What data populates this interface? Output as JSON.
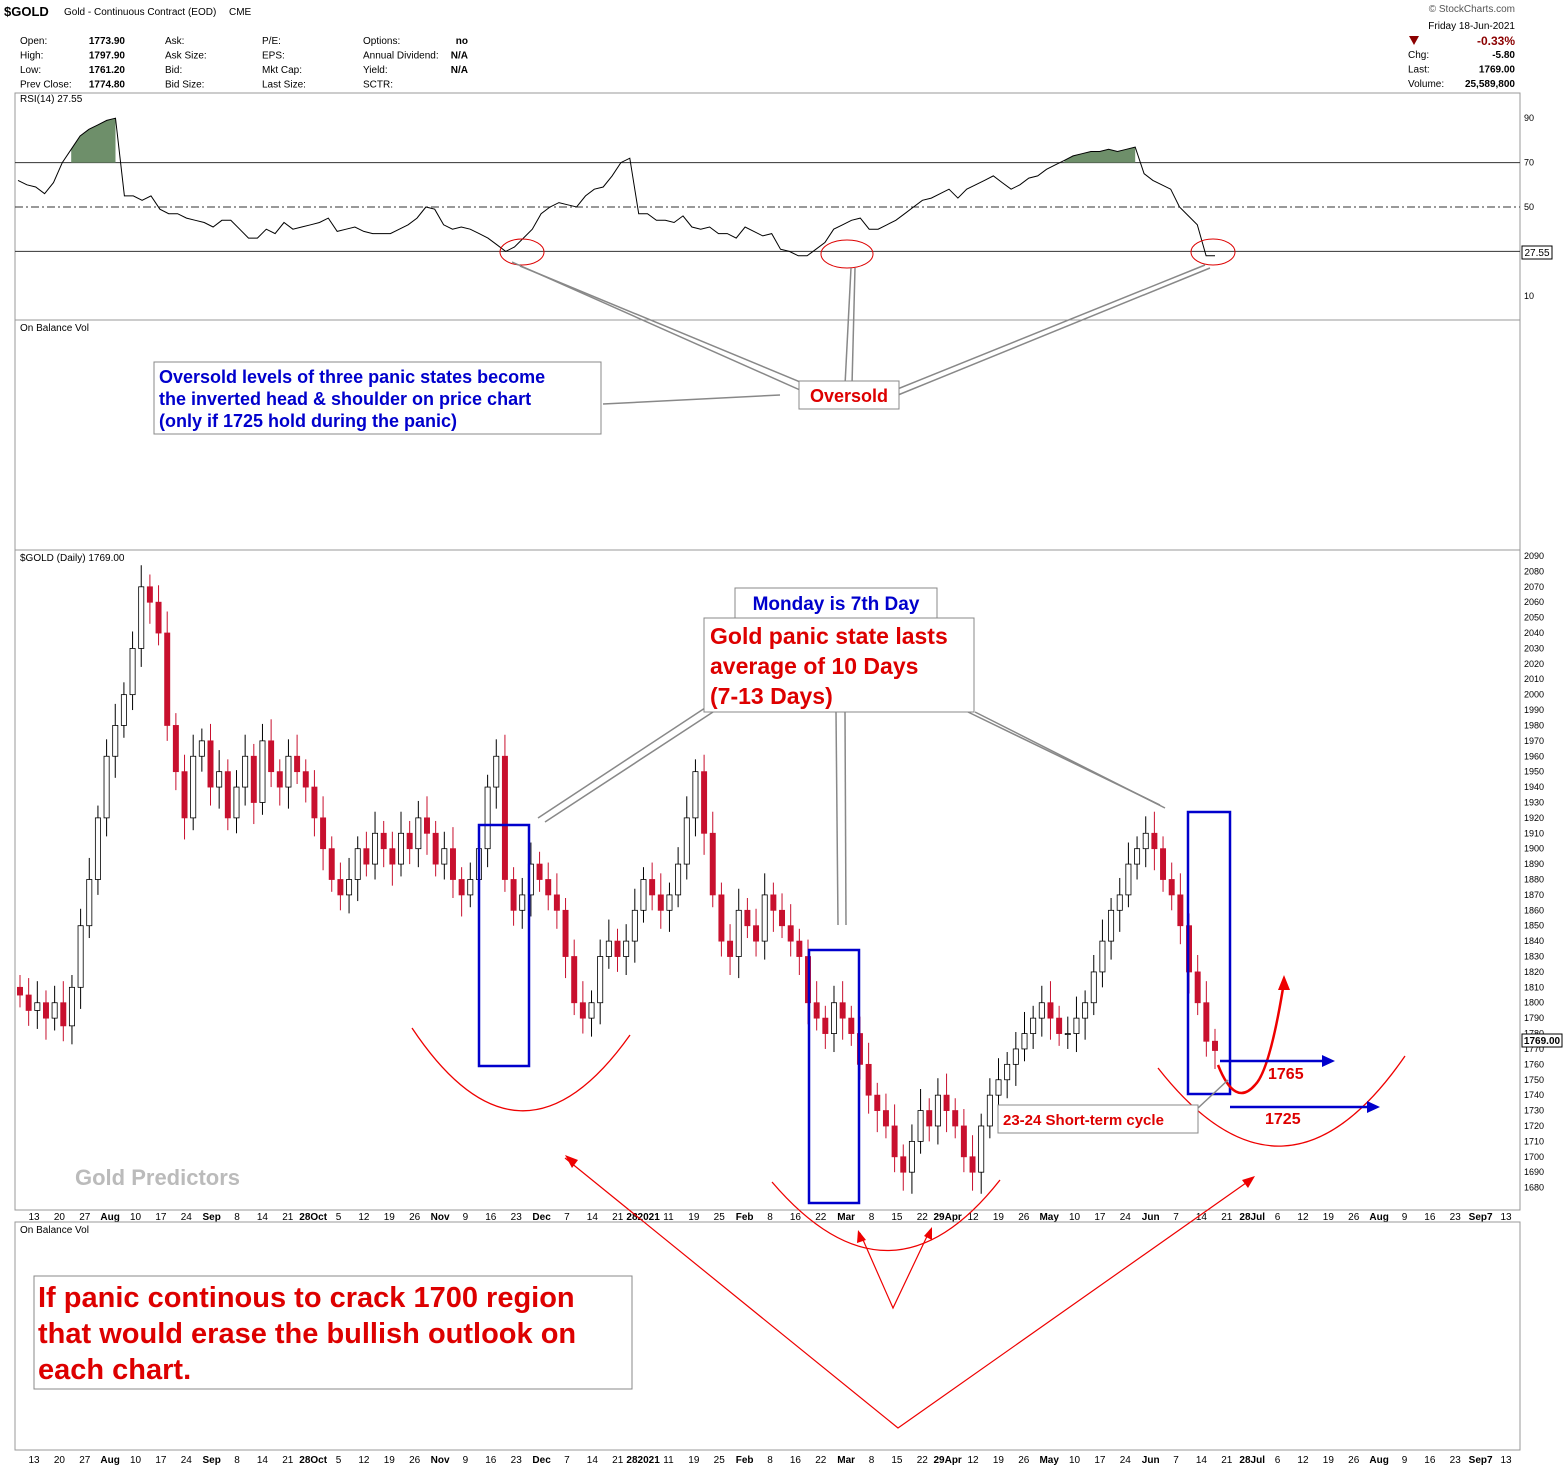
{
  "header": {
    "symbol": "$GOLD",
    "description": "Gold - Continuous Contract (EOD)",
    "exchange": "CME",
    "brand": "© StockCharts.com",
    "date": "Friday 18-Jun-2021",
    "stats": [
      {
        "label": "Open:",
        "value": "1773.90"
      },
      {
        "label": "High:",
        "value": "1797.90"
      },
      {
        "label": "Low:",
        "value": "1761.20"
      },
      {
        "label": "Prev Close:",
        "value": "1774.80"
      }
    ],
    "stats2": [
      {
        "label": "Ask:",
        "value": ""
      },
      {
        "label": "Ask Size:",
        "value": ""
      },
      {
        "label": "Bid:",
        "value": ""
      },
      {
        "label": "Bid Size:",
        "value": ""
      }
    ],
    "stats3": [
      {
        "label": "P/E:",
        "value": ""
      },
      {
        "label": "EPS:",
        "value": ""
      },
      {
        "label": "Mkt Cap:",
        "value": ""
      },
      {
        "label": "Last Size:",
        "value": ""
      }
    ],
    "stats4": [
      {
        "label": "Options:",
        "value": "no"
      },
      {
        "label": "Annual Dividend:",
        "value": "N/A"
      },
      {
        "label": "Yield:",
        "value": "N/A"
      },
      {
        "label": "SCTR:",
        "value": ""
      }
    ],
    "change_pct": "-0.33%",
    "quote": [
      {
        "label": "Chg:",
        "value": "-5.80"
      },
      {
        "label": "Last:",
        "value": "1769.00"
      },
      {
        "label": "Volume:",
        "value": "25,589,800"
      }
    ]
  },
  "chart_data": [
    {
      "type": "line",
      "title": "RSI(14) 27.55",
      "ylim": [
        0,
        100
      ],
      "yticks": [
        90,
        70,
        50,
        30,
        10
      ],
      "reference_lines": [
        70,
        50,
        30
      ],
      "current_label": "27.55",
      "series": [
        {
          "values": [
            62,
            60,
            59,
            56,
            61,
            70,
            76,
            82,
            85,
            87,
            89,
            90,
            55,
            55,
            53,
            55,
            49,
            47,
            47,
            45,
            44,
            43,
            41,
            44,
            44,
            40,
            36,
            36,
            40,
            38,
            43,
            40,
            41,
            42,
            43,
            45,
            39,
            40,
            41,
            39,
            38,
            38,
            38,
            40,
            42,
            45,
            50,
            49,
            42,
            40,
            41,
            40,
            38,
            36,
            33,
            30,
            32,
            36,
            40,
            47,
            50,
            52,
            51,
            50,
            55,
            58,
            59,
            64,
            70,
            72,
            47,
            47,
            44,
            44,
            43,
            46,
            41,
            40,
            41,
            38,
            38,
            36,
            41,
            39,
            37,
            38,
            31,
            30,
            28,
            28,
            31,
            34,
            40,
            42,
            44,
            45,
            40,
            40,
            42,
            44,
            47,
            50,
            53,
            54,
            56,
            58,
            54,
            58,
            60,
            62,
            64,
            61,
            58,
            60,
            63,
            64,
            67,
            69,
            71,
            73,
            74,
            75,
            75,
            76,
            75,
            76,
            77,
            65,
            62,
            60,
            58,
            50,
            46,
            42,
            28,
            28
          ]
        }
      ]
    },
    {
      "type": "text",
      "title": "On Balance Vol"
    },
    {
      "type": "candlestick",
      "title": "$GOLD (Daily) 1769.00",
      "ylim": [
        1670,
        2090
      ],
      "yticks": [
        2090,
        2080,
        2070,
        2060,
        2050,
        2040,
        2030,
        2020,
        2010,
        2000,
        1990,
        1980,
        1970,
        1960,
        1950,
        1940,
        1930,
        1920,
        1910,
        1900,
        1890,
        1880,
        1870,
        1860,
        1850,
        1840,
        1830,
        1820,
        1810,
        1800,
        1790,
        1780,
        1770,
        1760,
        1750,
        1740,
        1730,
        1720,
        1710,
        1700,
        1690,
        1680
      ],
      "last_label": "1769.00",
      "close": [
        1805,
        1795,
        1800,
        1790,
        1800,
        1785,
        1810,
        1850,
        1880,
        1920,
        1960,
        1980,
        2000,
        2030,
        2070,
        2060,
        2040,
        1980,
        1950,
        1920,
        1960,
        1970,
        1940,
        1950,
        1920,
        1940,
        1960,
        1930,
        1970,
        1950,
        1940,
        1960,
        1950,
        1940,
        1920,
        1900,
        1880,
        1870,
        1880,
        1900,
        1890,
        1910,
        1900,
        1890,
        1910,
        1900,
        1920,
        1910,
        1890,
        1900,
        1880,
        1870,
        1880,
        1900,
        1940,
        1960,
        1880,
        1860,
        1870,
        1890,
        1880,
        1870,
        1860,
        1830,
        1800,
        1790,
        1800,
        1830,
        1840,
        1830,
        1840,
        1860,
        1880,
        1870,
        1860,
        1870,
        1890,
        1920,
        1950,
        1910,
        1870,
        1840,
        1830,
        1860,
        1850,
        1840,
        1870,
        1860,
        1850,
        1840,
        1830,
        1800,
        1790,
        1780,
        1800,
        1790,
        1780,
        1760,
        1740,
        1730,
        1720,
        1700,
        1690,
        1710,
        1730,
        1720,
        1740,
        1730,
        1720,
        1700,
        1690,
        1720,
        1740,
        1750,
        1760,
        1770,
        1780,
        1790,
        1800,
        1790,
        1780,
        1780,
        1790,
        1800,
        1820,
        1840,
        1860,
        1870,
        1890,
        1900,
        1910,
        1900,
        1880,
        1870,
        1850,
        1820,
        1800,
        1775,
        1769
      ],
      "annotations": [
        {
          "text": "Monday is 7th Day",
          "color": "#0000cc"
        },
        {
          "text": "Gold panic state lasts average of 10 Days (7-13 Days)",
          "color": "#dd0000"
        },
        {
          "text": "23-24 Short-term cycle",
          "color": "#dd0000"
        },
        {
          "text": "1765",
          "color": "#dd0000"
        },
        {
          "text": "1725",
          "color": "#dd0000"
        }
      ],
      "watermark": "Gold Predictors"
    },
    {
      "type": "text",
      "title": "On Balance Vol"
    }
  ],
  "annotations": {
    "rsi_note": [
      "Oversold levels of three panic states become",
      "the inverted head & shoulder on price chart",
      "(only if 1725 hold during the panic)"
    ],
    "oversold": "Oversold",
    "panic_title": "Monday is 7th Day",
    "panic_text": [
      "Gold panic state lasts",
      "average of 10 Days",
      "(7-13 Days)"
    ],
    "cycle": "23-24 Short-term cycle",
    "level_1765": "1765",
    "level_1725": "1725",
    "watermark": "Gold Predictors",
    "bottom_note": [
      "If panic continous to crack 1700 region",
      "that would erase the bullish outlook on",
      "each chart."
    ]
  },
  "x_axis": {
    "labels": [
      "13",
      "20",
      "27",
      "Aug",
      "10",
      "17",
      "24",
      "Sep",
      "8",
      "14",
      "21",
      "28Oct",
      "5",
      "12",
      "19",
      "26",
      "Nov",
      "9",
      "16",
      "23",
      "Dec",
      "7",
      "14",
      "21",
      "282021",
      "11",
      "19",
      "25",
      "Feb",
      "8",
      "16",
      "22",
      "Mar",
      "8",
      "15",
      "22",
      "29Apr",
      "12",
      "19",
      "26",
      "May",
      "10",
      "17",
      "24",
      "Jun",
      "7",
      "14",
      "21",
      "28Jul",
      "6",
      "12",
      "19",
      "26",
      "Aug",
      "9",
      "16",
      "23",
      "Sep7",
      "13"
    ],
    "bold": [
      "Aug",
      "Sep",
      "Oct",
      "Nov",
      "Dec",
      "2021",
      "Feb",
      "Mar",
      "Apr",
      "May",
      "Jun",
      "Jul",
      "Sep"
    ]
  }
}
